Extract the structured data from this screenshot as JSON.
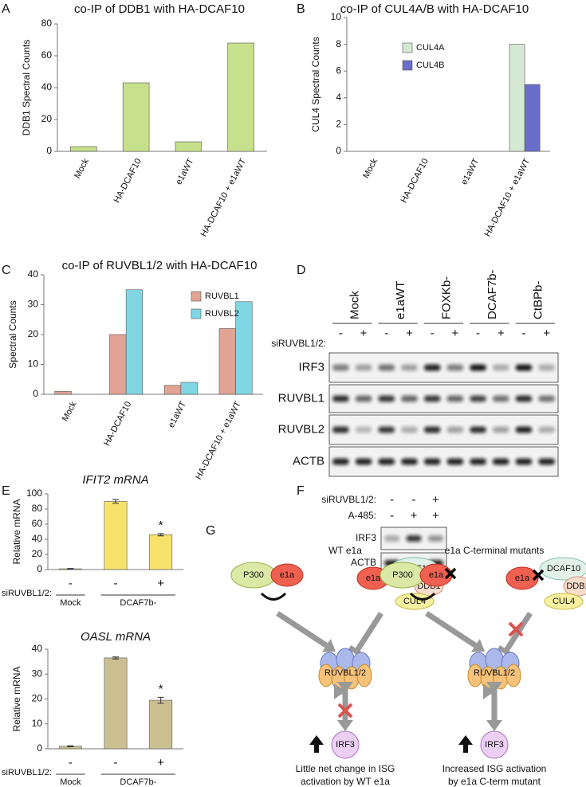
{
  "panel_labels": [
    "A",
    "B",
    "C",
    "D",
    "E",
    "F",
    "G"
  ],
  "chart_data": [
    {
      "type": "bar",
      "title": "co-IP of DDB1 with HA-DCAF10",
      "y_label": "DDB1 Spectral Counts",
      "categories": [
        "Mock",
        "HA-DCAF10",
        "e1aWT",
        "HA-DCAF10 + e1aWT"
      ],
      "values": [
        3,
        43,
        6,
        68
      ],
      "color": "#c6e08c",
      "ylim": [
        0,
        80
      ],
      "yticks": [
        0,
        20,
        40,
        60,
        80
      ]
    },
    {
      "type": "bar",
      "title": "co-IP of CUL4A/B with HA-DCAF10",
      "y_label": "CUL4 Spectral Counts",
      "categories": [
        "Mock",
        "HA-DCAF10",
        "e1aWT",
        "HA-DCAF10 + e1aWT"
      ],
      "series": [
        {
          "name": "CUL4A",
          "color": "#d5e8d4",
          "values": [
            0,
            0,
            0,
            8
          ]
        },
        {
          "name": "CUL4B",
          "color": "#6a6ecb",
          "values": [
            0,
            0,
            0,
            5
          ]
        }
      ],
      "ylim": [
        0,
        10
      ],
      "yticks": [
        0,
        2,
        4,
        6,
        8,
        10
      ]
    },
    {
      "type": "bar",
      "title": "co-IP of RUVBL1/2 with HA-DCAF10",
      "y_label": "Spectral Counts",
      "categories": [
        "Mock",
        "HA-DCAF10",
        "e1aWT",
        "HA-DCAF10 + e1aWT"
      ],
      "series": [
        {
          "name": "RUVBL1",
          "color": "#e0a394",
          "values": [
            1,
            20,
            3,
            22
          ]
        },
        {
          "name": "RUVBL2",
          "color": "#80d6e2",
          "values": [
            0,
            35,
            4,
            31
          ]
        }
      ],
      "ylim": [
        0,
        40
      ],
      "yticks": [
        0,
        10,
        20,
        30,
        40
      ]
    },
    {
      "type": "bar",
      "title": "IFIT2 mRNA",
      "y_label": "Relative mRNA",
      "x_label": "siRUVBL1/2:",
      "categories": [
        "-",
        "-",
        "+"
      ],
      "groups": [
        "Mock",
        "DCAF7b-"
      ],
      "values": [
        1,
        90,
        46
      ],
      "errors": [
        0.5,
        2.5,
        1.5
      ],
      "annotations": [
        null,
        null,
        "*"
      ],
      "color": "#f7e36b",
      "ylim": [
        0,
        100
      ],
      "yticks": [
        0,
        20,
        40,
        60,
        80,
        100
      ]
    },
    {
      "type": "bar",
      "title": "OASL mRNA",
      "y_label": "Relative mRNA",
      "x_label": "siRUVBL1/2:",
      "categories": [
        "-",
        "-",
        "+"
      ],
      "groups": [
        "Mock",
        "DCAF7b-"
      ],
      "values": [
        1,
        36.5,
        19.5
      ],
      "errors": [
        0.2,
        0.4,
        1.2
      ],
      "annotations": [
        null,
        null,
        "*"
      ],
      "color": "#cbbf90",
      "ylim": [
        0,
        40
      ],
      "yticks": [
        0,
        10,
        20,
        30,
        40
      ]
    }
  ],
  "blot_d": {
    "columns": [
      "Mock",
      "e1aWT",
      "FOXKb-",
      "DCAF7b-",
      "CtBPb-"
    ],
    "row_label": "siRUVBL1/2:",
    "treatment": [
      "-",
      "+",
      "-",
      "+",
      "-",
      "+",
      "-",
      "+",
      "-",
      "+"
    ],
    "bands": [
      "IRF3",
      "RUVBL1",
      "RUVBL2",
      "ACTB"
    ]
  },
  "blot_f": {
    "rows": [
      {
        "label": "siRUVBL1/2:",
        "treatment": [
          "-",
          "-",
          "+"
        ]
      },
      {
        "label": "A-485:",
        "treatment": [
          "-",
          "+",
          "+"
        ]
      }
    ],
    "bands": [
      "IRF3",
      "ACTB"
    ]
  },
  "diagram": {
    "title_left": "WT e1a",
    "title_right": "e1a C-terminal mutants",
    "nodes": {
      "p300": "P300",
      "e1a": "e1a",
      "dcaf10": "DCAF10",
      "ddb1": "DDB1",
      "cul4": "CUL4",
      "ruvbl": "RUVBL1/2",
      "irf3": "IRF3"
    },
    "caption_left": [
      "Little net change in ISG",
      "activation by WT e1a"
    ],
    "caption_right": [
      "Increased ISG activation",
      "by e1a C-term mutant"
    ]
  }
}
